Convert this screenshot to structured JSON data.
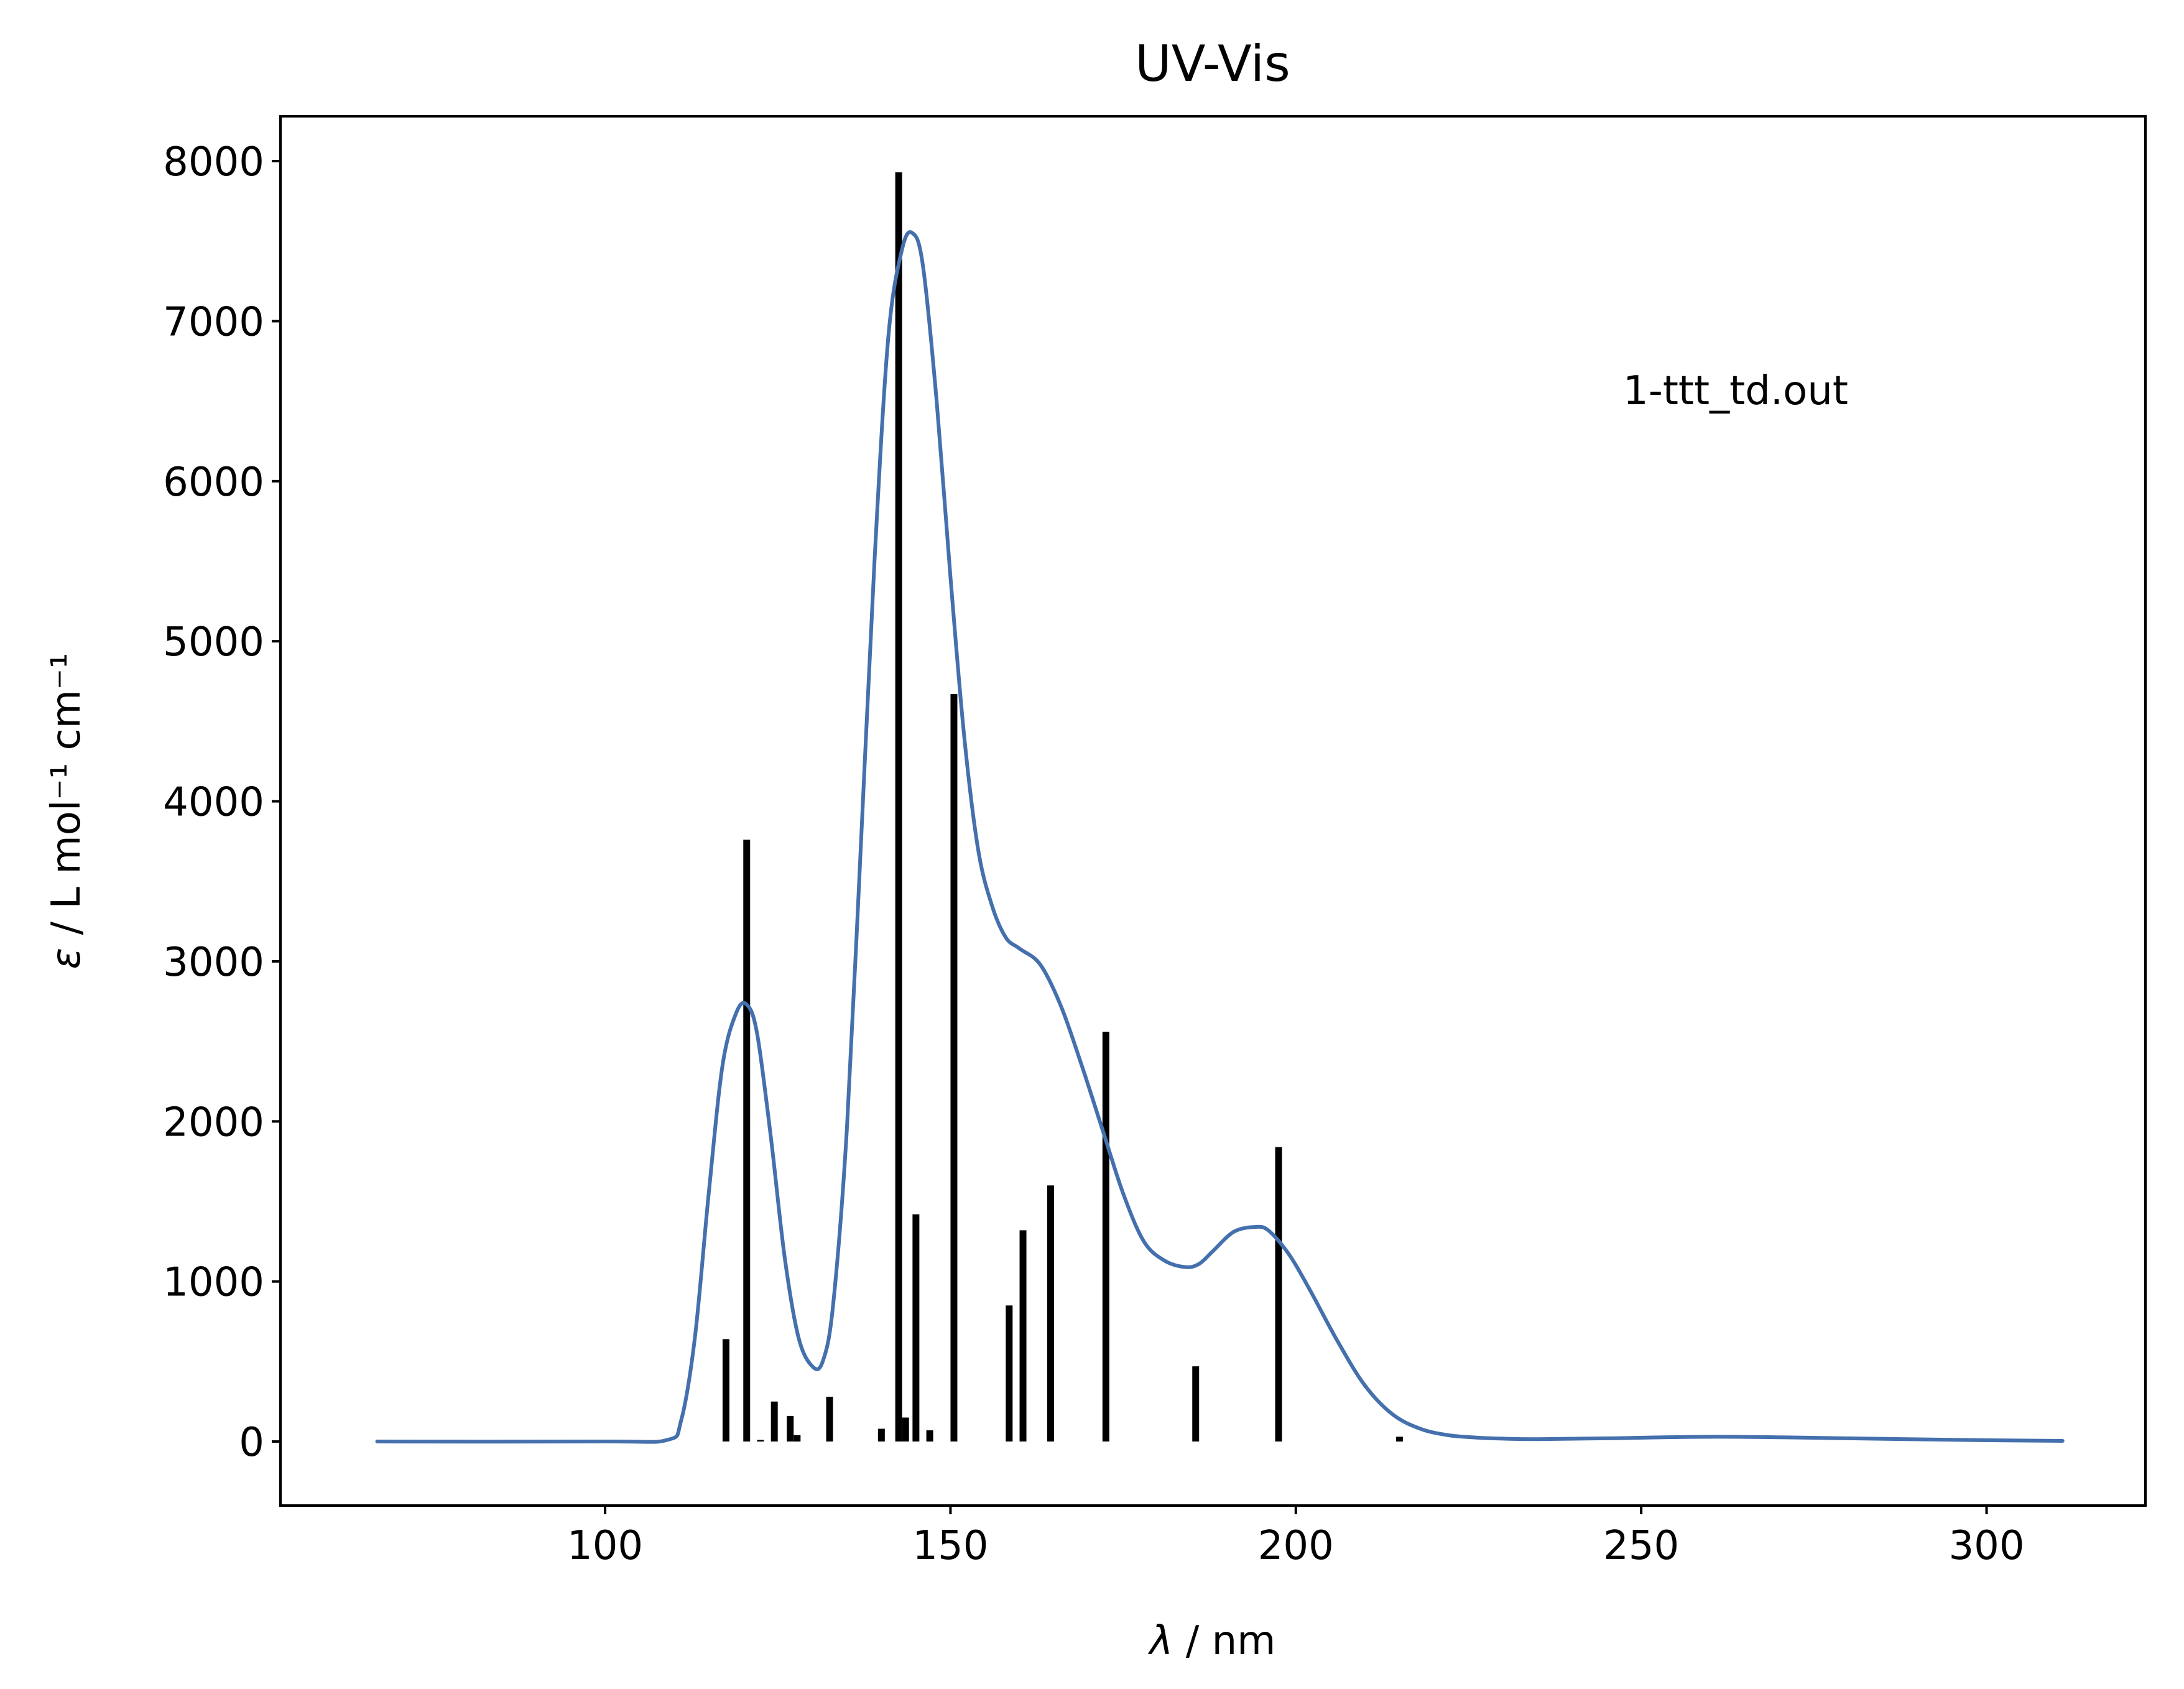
{
  "chart_data": {
    "type": "line",
    "title": "UV-Vis",
    "xlabel_symbol": "λ",
    "xlabel_rest": " / nm",
    "ylabel_symbol": "ε",
    "ylabel_rest": " / L mol⁻¹ cm⁻¹",
    "annotation": "1-ttt_td.out",
    "xlim": [
      53,
      323
    ],
    "ylim": [
      -400,
      8280
    ],
    "x_ticks": [
      100,
      150,
      200,
      250,
      300
    ],
    "y_ticks": [
      0,
      1000,
      2000,
      3000,
      4000,
      5000,
      6000,
      7000,
      8000
    ],
    "grid": false,
    "colors": {
      "spectrum": "#4470ad",
      "sticks": "#000000"
    },
    "series": [
      {
        "type": "line",
        "x": [
          67,
          100,
          109,
          111,
          113,
          115,
          117,
          119,
          120.5,
          122,
          124,
          126,
          128,
          130,
          131.5,
          133,
          135,
          137,
          139,
          141,
          143,
          144.5,
          146,
          148,
          150,
          152,
          154,
          156,
          158,
          160,
          163,
          166,
          169,
          172,
          175,
          178,
          181,
          184,
          186,
          188,
          191,
          194,
          196,
          199,
          202,
          206,
          210,
          214,
          218,
          222,
          226,
          230,
          235,
          245,
          261,
          280,
          300,
          311
        ],
        "y": [
          0,
          0,
          10,
          130,
          650,
          1550,
          2350,
          2680,
          2730,
          2550,
          1900,
          1150,
          650,
          470,
          500,
          850,
          1950,
          3700,
          5500,
          6900,
          7450,
          7550,
          7350,
          6500,
          5400,
          4400,
          3700,
          3350,
          3150,
          3080,
          2980,
          2720,
          2350,
          1950,
          1550,
          1250,
          1130,
          1090,
          1110,
          1190,
          1310,
          1340,
          1320,
          1170,
          950,
          630,
          350,
          170,
          80,
          40,
          25,
          18,
          15,
          20,
          30,
          20,
          8,
          4
        ]
      },
      {
        "type": "stick",
        "x": [
          117.5,
          120.5,
          122.5,
          124.5,
          126.8,
          127.8,
          132.5,
          140,
          142.5,
          143.5,
          145,
          147,
          150.5,
          158.5,
          160.5,
          164.5,
          172.5,
          185.5,
          197.5,
          215
        ],
        "y": [
          640,
          3760,
          10,
          250,
          160,
          40,
          280,
          80,
          7930,
          150,
          1420,
          70,
          4670,
          850,
          1320,
          1600,
          2560,
          470,
          1840,
          30
        ]
      }
    ]
  }
}
